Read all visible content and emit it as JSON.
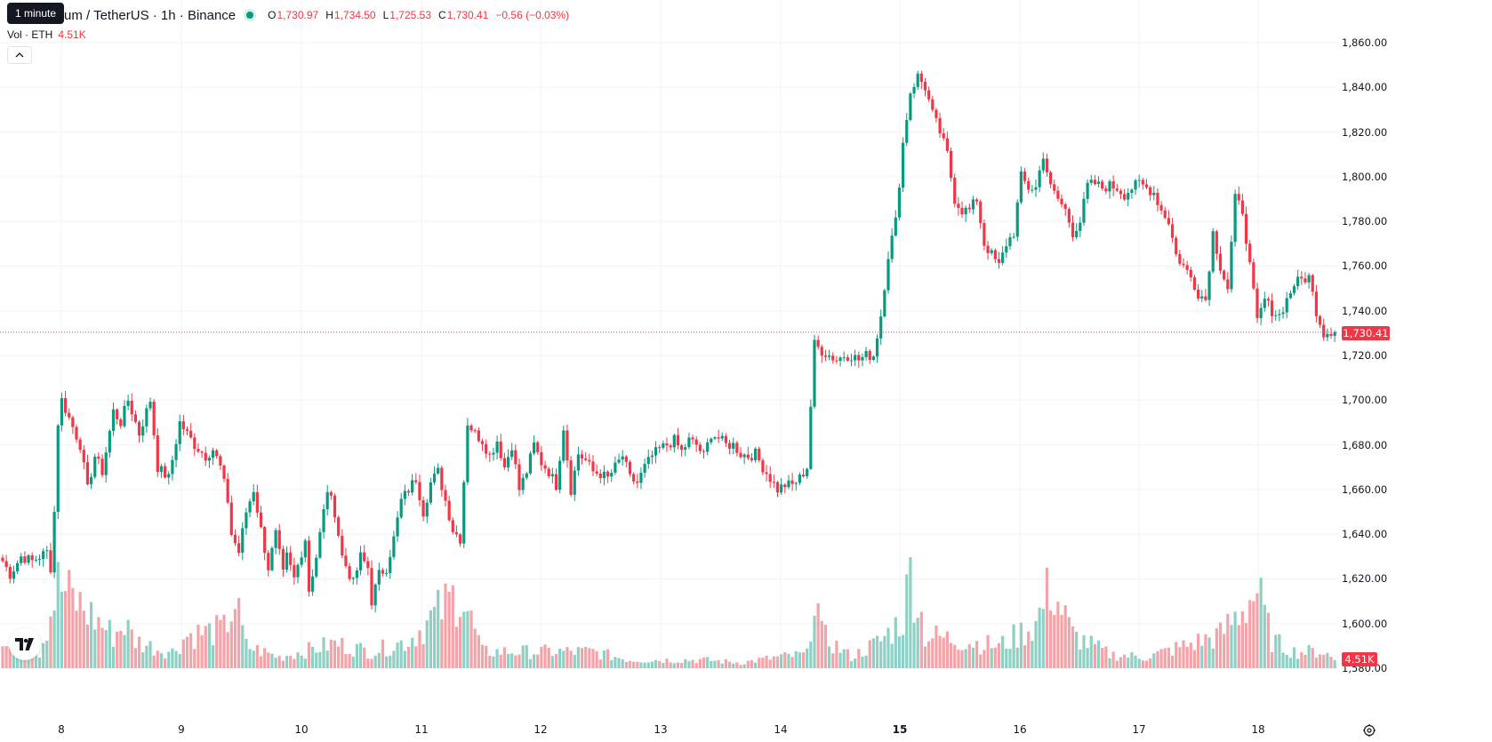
{
  "legend": {
    "tooltip": "1 minute",
    "symbol_title": "um / TetherUS · 1h · Binance",
    "o_label": "O",
    "o_value": "1,730.97",
    "h_label": "H",
    "h_value": "1,734.50",
    "l_label": "L",
    "l_value": "1,725.53",
    "c_label": "C",
    "c_value": "1,730.41",
    "change": "−0.56 (−0.03%)"
  },
  "volume_legend": {
    "label": "Vol · ETH",
    "value": "4.51K"
  },
  "price_axis": {
    "labels": [
      "1,860.00",
      "1,840.00",
      "1,820.00",
      "1,800.00",
      "1,780.00",
      "1,760.00",
      "1,740.00",
      "1,720.00",
      "1,700.00",
      "1,680.00",
      "1,660.00",
      "1,640.00",
      "1,620.00",
      "1,600.00",
      "1,580.00"
    ],
    "last_price": "1,730.41",
    "last_volume": "4.51K"
  },
  "time_axis": {
    "labels": [
      "8",
      "9",
      "10",
      "11",
      "12",
      "13",
      "14",
      "15",
      "16",
      "17",
      "18"
    ],
    "bold_label": "15"
  },
  "colors": {
    "up": "#089981",
    "down": "#f23645",
    "up_volume": "#8fd0c5",
    "down_volume": "#f5a3a9",
    "grid": "#f0f3fa"
  },
  "chart_data": {
    "type": "candlestick",
    "interval": "1h",
    "anchors": [
      [
        0,
        1628
      ],
      [
        2,
        1622
      ],
      [
        5,
        1630
      ],
      [
        8,
        1628
      ],
      [
        10,
        1630
      ],
      [
        12,
        1632
      ],
      [
        13,
        1625
      ],
      [
        14,
        1650
      ],
      [
        15,
        1690
      ],
      [
        16,
        1700
      ],
      [
        18,
        1692
      ],
      [
        21,
        1680
      ],
      [
        23,
        1660
      ],
      [
        25,
        1675
      ],
      [
        27,
        1668
      ],
      [
        30,
        1695
      ],
      [
        32,
        1690
      ],
      [
        34,
        1700
      ],
      [
        37,
        1685
      ],
      [
        40,
        1700
      ],
      [
        42,
        1670
      ],
      [
        45,
        1665
      ],
      [
        48,
        1690
      ],
      [
        50,
        1685
      ],
      [
        52,
        1680
      ],
      [
        55,
        1675
      ],
      [
        57,
        1678
      ],
      [
        59,
        1670
      ],
      [
        61,
        1655
      ],
      [
        62,
        1640
      ],
      [
        64,
        1632
      ],
      [
        66,
        1650
      ],
      [
        68,
        1660
      ],
      [
        70,
        1642
      ],
      [
        72,
        1625
      ],
      [
        74,
        1640
      ],
      [
        76,
        1622
      ],
      [
        77,
        1630
      ],
      [
        79,
        1620
      ],
      [
        82,
        1638
      ],
      [
        83,
        1615
      ],
      [
        85,
        1630
      ],
      [
        86,
        1640
      ],
      [
        88,
        1660
      ],
      [
        90,
        1650
      ],
      [
        92,
        1630
      ],
      [
        95,
        1618
      ],
      [
        97,
        1630
      ],
      [
        99,
        1625
      ],
      [
        100,
        1610
      ],
      [
        102,
        1622
      ],
      [
        104,
        1625
      ],
      [
        106,
        1638
      ],
      [
        108,
        1655
      ],
      [
        110,
        1660
      ],
      [
        112,
        1665
      ],
      [
        114,
        1650
      ],
      [
        116,
        1663
      ],
      [
        118,
        1668
      ],
      [
        120,
        1655
      ],
      [
        122,
        1642
      ],
      [
        124,
        1638
      ],
      [
        126,
        1690
      ],
      [
        128,
        1685
      ],
      [
        130,
        1682
      ],
      [
        132,
        1675
      ],
      [
        134,
        1682
      ],
      [
        136,
        1670
      ],
      [
        138,
        1680
      ],
      [
        140,
        1660
      ],
      [
        142,
        1668
      ],
      [
        144,
        1680
      ],
      [
        146,
        1672
      ],
      [
        148,
        1668
      ],
      [
        150,
        1662
      ],
      [
        152,
        1688
      ],
      [
        154,
        1660
      ],
      [
        156,
        1676
      ],
      [
        158,
        1673
      ],
      [
        160,
        1668
      ],
      [
        162,
        1667
      ],
      [
        164,
        1665
      ],
      [
        166,
        1670
      ],
      [
        168,
        1675
      ],
      [
        170,
        1665
      ],
      [
        172,
        1663
      ],
      [
        174,
        1670
      ],
      [
        176,
        1675
      ],
      [
        178,
        1678
      ],
      [
        180,
        1680
      ],
      [
        182,
        1682
      ],
      [
        184,
        1677
      ],
      [
        186,
        1682
      ],
      [
        188,
        1680
      ],
      [
        190,
        1675
      ],
      [
        192,
        1685
      ],
      [
        194,
        1683
      ],
      [
        196,
        1680
      ],
      [
        198,
        1680
      ],
      [
        200,
        1676
      ],
      [
        202,
        1675
      ],
      [
        204,
        1676
      ],
      [
        206,
        1670
      ],
      [
        208,
        1665
      ],
      [
        210,
        1660
      ],
      [
        212,
        1662
      ],
      [
        214,
        1662
      ],
      [
        216,
        1665
      ],
      [
        218,
        1670
      ],
      [
        220,
        1725
      ],
      [
        222,
        1722
      ],
      [
        224,
        1720
      ],
      [
        226,
        1718
      ],
      [
        228,
        1720
      ],
      [
        230,
        1720
      ],
      [
        232,
        1718
      ],
      [
        234,
        1720
      ],
      [
        236,
        1720
      ],
      [
        238,
        1738
      ],
      [
        240,
        1765
      ],
      [
        242,
        1780
      ],
      [
        244,
        1815
      ],
      [
        246,
        1838
      ],
      [
        248,
        1845
      ],
      [
        250,
        1840
      ],
      [
        252,
        1828
      ],
      [
        254,
        1820
      ],
      [
        256,
        1810
      ],
      [
        258,
        1790
      ],
      [
        260,
        1785
      ],
      [
        262,
        1785
      ],
      [
        264,
        1790
      ],
      [
        266,
        1770
      ],
      [
        268,
        1765
      ],
      [
        270,
        1760
      ],
      [
        272,
        1770
      ],
      [
        274,
        1775
      ],
      [
        276,
        1800
      ],
      [
        278,
        1795
      ],
      [
        280,
        1795
      ],
      [
        282,
        1810
      ],
      [
        284,
        1795
      ],
      [
        286,
        1790
      ],
      [
        288,
        1785
      ],
      [
        290,
        1775
      ],
      [
        292,
        1780
      ],
      [
        294,
        1796
      ],
      [
        296,
        1797
      ],
      [
        298,
        1795
      ],
      [
        300,
        1796
      ],
      [
        302,
        1795
      ],
      [
        304,
        1792
      ],
      [
        306,
        1795
      ],
      [
        308,
        1797
      ],
      [
        310,
        1795
      ],
      [
        312,
        1793
      ],
      [
        314,
        1785
      ],
      [
        316,
        1780
      ],
      [
        318,
        1765
      ],
      [
        320,
        1760
      ],
      [
        322,
        1755
      ],
      [
        324,
        1748
      ],
      [
        326,
        1745
      ],
      [
        328,
        1775
      ],
      [
        330,
        1760
      ],
      [
        332,
        1750
      ],
      [
        334,
        1790
      ],
      [
        336,
        1785
      ],
      [
        338,
        1760
      ],
      [
        340,
        1735
      ],
      [
        342,
        1745
      ],
      [
        344,
        1740
      ],
      [
        346,
        1738
      ],
      [
        348,
        1745
      ],
      [
        350,
        1752
      ],
      [
        352,
        1754
      ],
      [
        354,
        1755
      ],
      [
        356,
        1740
      ],
      [
        358,
        1730
      ],
      [
        360,
        1731
      ],
      [
        361,
        1730.41
      ]
    ],
    "volume_anchors": [
      [
        0,
        8
      ],
      [
        10,
        6
      ],
      [
        15,
        30
      ],
      [
        30,
        12
      ],
      [
        33,
        16
      ],
      [
        36,
        10
      ],
      [
        42,
        7
      ],
      [
        46,
        6
      ],
      [
        50,
        12
      ],
      [
        60,
        14
      ],
      [
        63,
        24
      ],
      [
        66,
        8
      ],
      [
        75,
        4
      ],
      [
        90,
        9
      ],
      [
        100,
        6
      ],
      [
        110,
        10
      ],
      [
        124,
        28
      ],
      [
        130,
        6
      ],
      [
        160,
        6
      ],
      [
        170,
        3
      ],
      [
        190,
        3
      ],
      [
        200,
        2
      ],
      [
        210,
        4
      ],
      [
        218,
        5
      ],
      [
        220,
        30
      ],
      [
        222,
        12
      ],
      [
        230,
        4
      ],
      [
        238,
        10
      ],
      [
        244,
        18
      ],
      [
        246,
        35
      ],
      [
        248,
        25
      ],
      [
        250,
        12
      ],
      [
        260,
        10
      ],
      [
        270,
        8
      ],
      [
        280,
        16
      ],
      [
        284,
        30
      ],
      [
        290,
        12
      ],
      [
        300,
        5
      ],
      [
        310,
        4
      ],
      [
        320,
        8
      ],
      [
        330,
        12
      ],
      [
        338,
        25
      ],
      [
        340,
        28
      ],
      [
        344,
        10
      ],
      [
        350,
        6
      ],
      [
        358,
        6
      ],
      [
        361,
        3
      ]
    ],
    "price_range": [
      1580,
      1860
    ],
    "x_labels": [
      "8",
      "9",
      "10",
      "11",
      "12",
      "13",
      "14",
      "15",
      "16",
      "17",
      "18"
    ],
    "last_close": 1730.41,
    "last_volume": "4.51K"
  }
}
